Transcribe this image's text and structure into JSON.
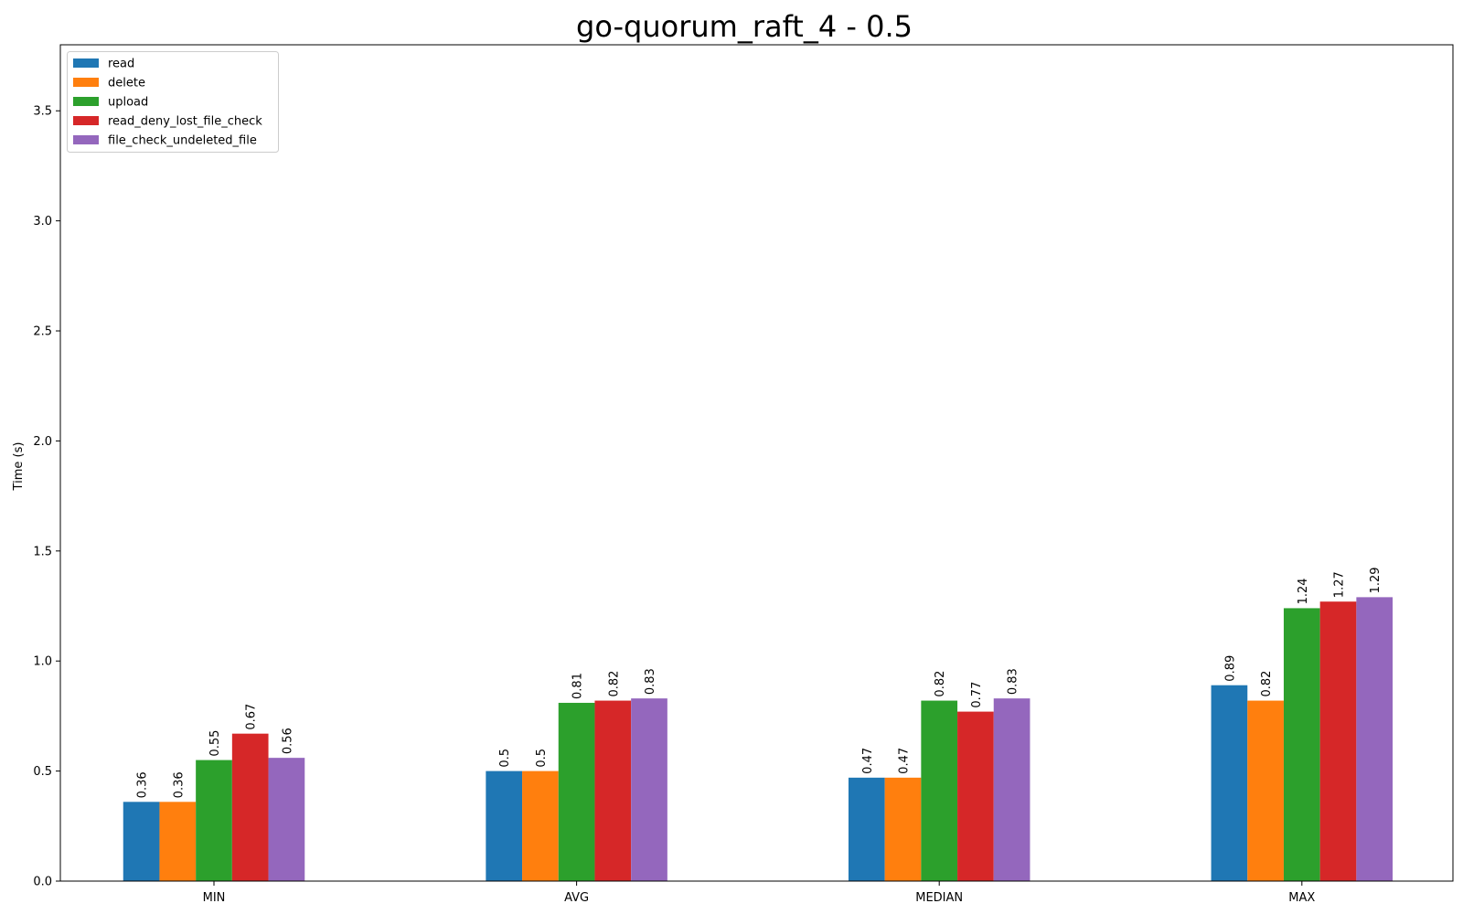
{
  "chart_data": {
    "type": "bar",
    "title": "go-quorum_raft_4 - 0.5",
    "xlabel": "",
    "ylabel": "Time (s)",
    "ylim": [
      0,
      3.8
    ],
    "yticks": [
      0.0,
      0.5,
      1.0,
      1.5,
      2.0,
      2.5,
      3.0,
      3.5
    ],
    "ytick_labels": [
      "0.0",
      "0.5",
      "1.0",
      "1.5",
      "2.0",
      "2.5",
      "3.0",
      "3.5"
    ],
    "categories": [
      "MIN",
      "AVG",
      "MEDIAN",
      "MAX"
    ],
    "legend_position": "top-left",
    "grid": false,
    "series": [
      {
        "name": "read",
        "color": "#1f77b4",
        "values": [
          0.36,
          0.5,
          0.47,
          0.89
        ],
        "labels": [
          "0.36",
          "0.5",
          "0.47",
          "0.89"
        ]
      },
      {
        "name": "delete",
        "color": "#ff7f0e",
        "values": [
          0.36,
          0.5,
          0.47,
          0.82
        ],
        "labels": [
          "0.36",
          "0.5",
          "0.47",
          "0.82"
        ]
      },
      {
        "name": "upload",
        "color": "#2ca02c",
        "values": [
          0.55,
          0.81,
          0.82,
          1.24
        ],
        "labels": [
          "0.55",
          "0.81",
          "0.82",
          "1.24"
        ]
      },
      {
        "name": "read_deny_lost_file_check",
        "color": "#d62728",
        "values": [
          0.67,
          0.82,
          0.77,
          1.27
        ],
        "labels": [
          "0.67",
          "0.82",
          "0.77",
          "1.27"
        ]
      },
      {
        "name": "file_check_undeleted_file",
        "color": "#9467bd",
        "values": [
          0.56,
          0.83,
          0.83,
          1.29
        ],
        "labels": [
          "0.56",
          "0.83",
          "0.83",
          "1.29"
        ]
      }
    ]
  }
}
